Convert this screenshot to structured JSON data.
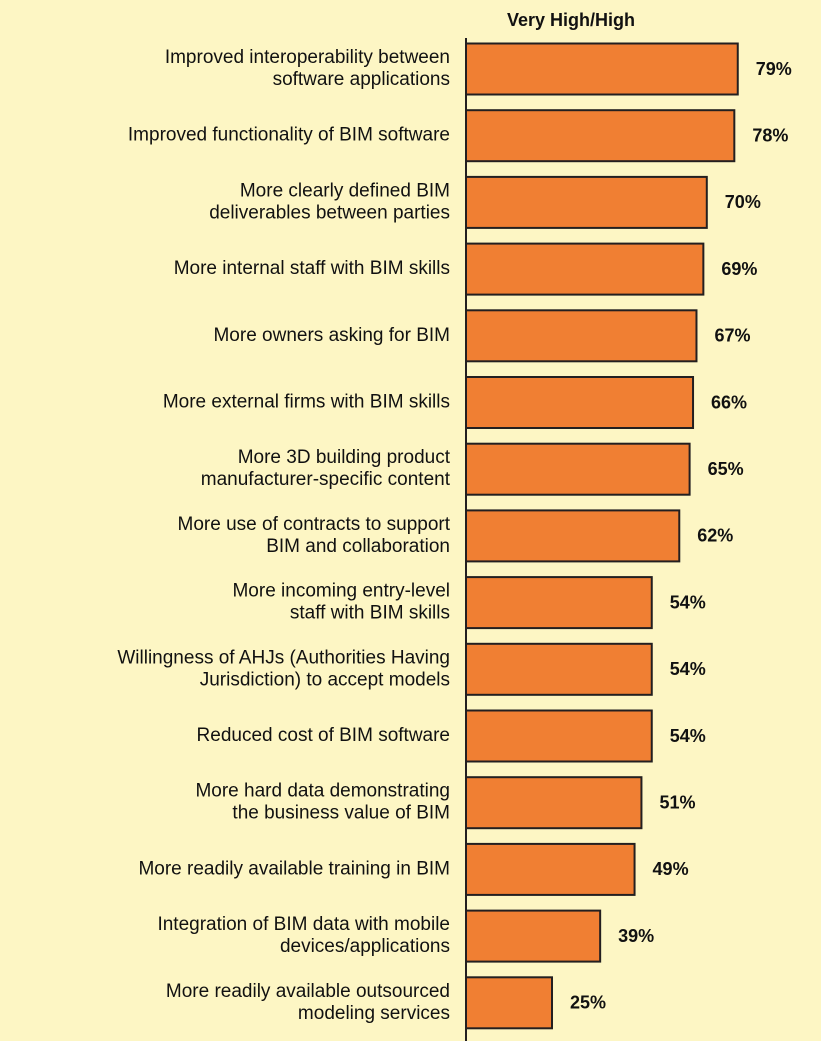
{
  "chart_data": {
    "type": "barh",
    "title": "Very High/High",
    "categories": [
      "Improved interoperability between\nsoftware applications",
      "Improved functionality of BIM software",
      "More clearly defined BIM\ndeliverables between parties",
      "More internal staff with BIM skills",
      "More owners asking for BIM",
      "More external firms with BIM skills",
      "More 3D building product\nmanufacturer-specific content",
      "More use of contracts to support\nBIM and collaboration",
      "More incoming entry-level\nstaff with BIM skills",
      "Willingness of AHJs (Authorities Having\nJurisdiction) to accept models",
      "Reduced cost of BIM software",
      "More hard data demonstrating\nthe business value of BIM",
      "More readily available training in BIM",
      "Integration of BIM data with mobile\ndevices/applications",
      "More readily available outsourced\nmodeling services"
    ],
    "values": [
      79,
      78,
      70,
      69,
      67,
      66,
      65,
      62,
      54,
      54,
      54,
      51,
      49,
      39,
      25
    ],
    "value_labels": [
      "79%",
      "78%",
      "70%",
      "69%",
      "67%",
      "66%",
      "65%",
      "62%",
      "54%",
      "54%",
      "54%",
      "51%",
      "49%",
      "39%",
      "25%"
    ],
    "color": "#f07f33",
    "xlim": [
      0,
      100
    ]
  }
}
